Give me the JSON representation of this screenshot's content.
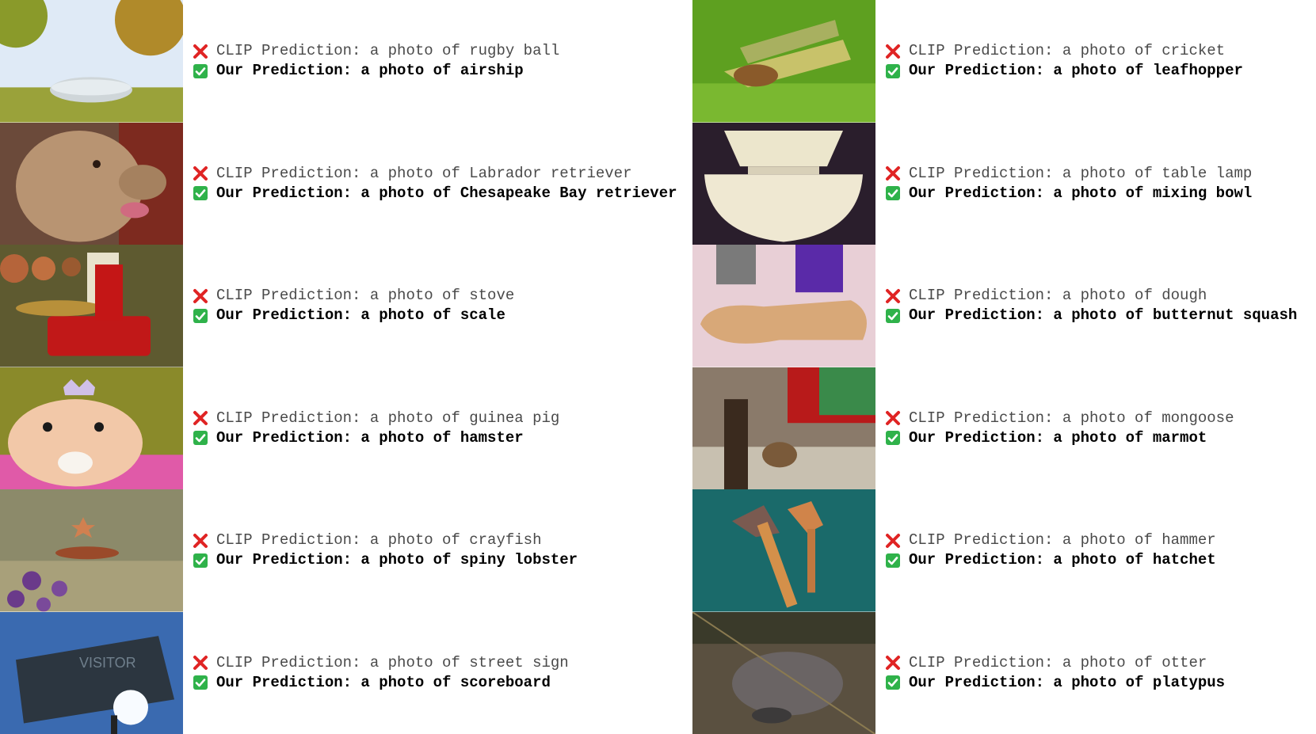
{
  "colors": {
    "cross": "#e02424",
    "check_bg": "#2fb24a",
    "clip_text": "#4a4a4a",
    "our_text": "#000000"
  },
  "icons": {
    "wrong": "red-cross-icon",
    "right": "green-checkbox-icon"
  },
  "left": [
    {
      "image": "airship-photo",
      "clip": "CLIP Prediction: a photo of rugby ball",
      "ours": "Our Prediction: a photo of airship"
    },
    {
      "image": "dog-photo",
      "clip": "CLIP Prediction: a photo of Labrador retriever",
      "ours": "Our Prediction: a photo of Chesapeake Bay retriever"
    },
    {
      "image": "kitchen-scale-photo",
      "clip": "CLIP Prediction: a photo of stove",
      "ours": "Our Prediction: a photo of scale"
    },
    {
      "image": "hamster-photo",
      "clip": "CLIP Prediction: a photo of guinea pig",
      "ours": "Our Prediction: a photo of hamster"
    },
    {
      "image": "lobster-photo",
      "clip": "CLIP Prediction: a photo of crayfish",
      "ours": "Our Prediction: a photo of spiny lobster"
    },
    {
      "image": "scoreboard-photo",
      "clip": "CLIP Prediction: a photo of street sign",
      "ours": "Our Prediction: a photo of scoreboard"
    }
  ],
  "right": [
    {
      "image": "leafhopper-photo",
      "clip": "CLIP Prediction: a photo of cricket",
      "ours": "Our Prediction: a photo of leafhopper"
    },
    {
      "image": "bowl-photo",
      "clip": "CLIP Prediction: a photo of table lamp",
      "ours": "Our Prediction: a photo of mixing bowl"
    },
    {
      "image": "squash-photo",
      "clip": "CLIP Prediction: a photo of dough",
      "ours": "Our Prediction: a photo of butternut squash"
    },
    {
      "image": "marmot-photo",
      "clip": "CLIP Prediction: a photo of mongoose",
      "ours": "Our Prediction: a photo of marmot"
    },
    {
      "image": "hatchet-photo",
      "clip": "CLIP Prediction: a photo of hammer",
      "ours": "Our Prediction: a photo of hatchet"
    },
    {
      "image": "platypus-photo",
      "clip": "CLIP Prediction: a photo of otter",
      "ours": "Our Prediction: a photo of platypus"
    }
  ]
}
